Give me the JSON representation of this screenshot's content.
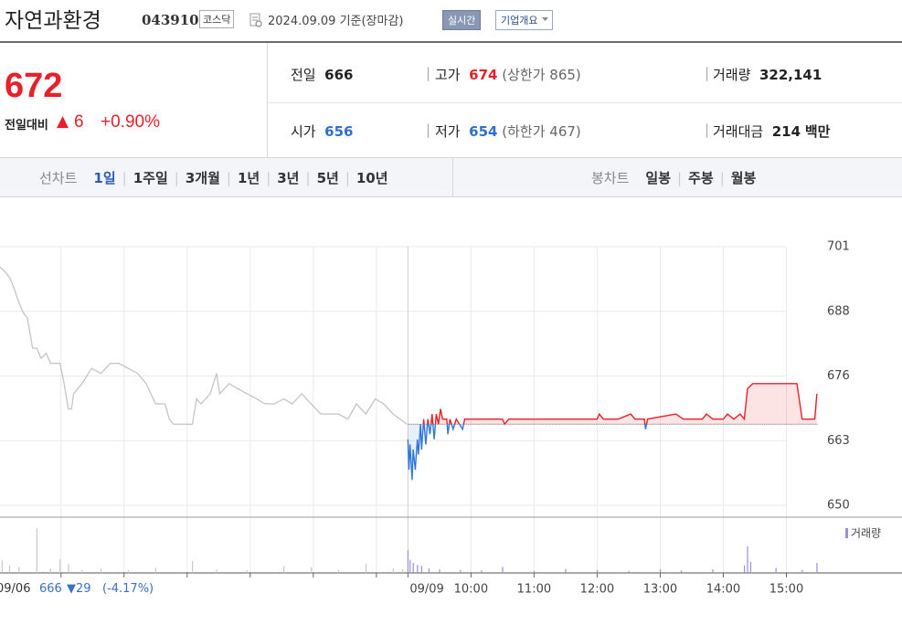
{
  "header": {
    "title": "자연과환경",
    "code": "043910",
    "market": "코스닥",
    "date": "2024.09.09 기준(장마감)",
    "realtime": "실시간",
    "company": "기업개요"
  },
  "quote": {
    "price": 672,
    "change_label": "전일대비",
    "arrow": "▲",
    "change": 6,
    "change_pct": "+0.90%"
  },
  "stats": {
    "prev_close": {
      "label": "전일",
      "value": 666
    },
    "high": {
      "label": "고가",
      "value": 674,
      "extra": "(상한가 865)"
    },
    "volume": {
      "label": "거래량",
      "value": "322,141"
    },
    "open": {
      "label": "시가",
      "value": 656
    },
    "low": {
      "label": "저가",
      "value": 654,
      "extra": "(하한가 467)"
    },
    "amount": {
      "label": "거래대금",
      "value": 214,
      "unit": "백만"
    }
  },
  "tabs": {
    "line": {
      "label": "선차트",
      "items": [
        "1일",
        "1주일",
        "3개월",
        "1년",
        "3년",
        "5년",
        "10년"
      ],
      "active": 0
    },
    "candle": {
      "label": "봉차트",
      "items": [
        "일봉",
        "주봉",
        "월봉"
      ]
    }
  },
  "prev_day": {
    "date": "09/06",
    "close": 666,
    "change": "▼29",
    "pct": "(-4.17%)"
  },
  "chart_data": {
    "type": "line",
    "xlim": [
      -388,
      390
    ],
    "ylim": [
      650,
      701
    ],
    "yticks": [
      650,
      {
        "value": 662.75,
        "label": "663"
      },
      {
        "value": 675.5,
        "label": "676"
      },
      {
        "value": 688.25,
        "label": "688"
      },
      701
    ],
    "xticks": [
      {
        "value": -330,
        "label": null
      },
      {
        "value": -270,
        "label": null
      },
      {
        "value": -210,
        "label": null
      },
      {
        "value": -150,
        "label": null
      },
      {
        "value": -90,
        "label": null
      },
      {
        "value": -30,
        "label": null
      },
      {
        "value": 0,
        "label": "09/09"
      },
      {
        "value": 60,
        "label": "10:00"
      },
      {
        "value": 120,
        "label": "11:00"
      },
      {
        "value": 180,
        "label": "12:00"
      },
      {
        "value": 240,
        "label": "13:00"
      },
      {
        "value": 300,
        "label": "14:00"
      },
      {
        "value": 360,
        "label": "15:00"
      }
    ],
    "grid": true,
    "baseline": 666,
    "series": [
      {
        "color": "#c4c4c4",
        "x": [
          -388,
          -383,
          -379,
          -375,
          -370,
          -366,
          -362,
          -357,
          -353,
          -349,
          -344,
          -340,
          -336,
          -331,
          -327,
          -323,
          -320,
          -318,
          -310,
          -301,
          -292,
          -283,
          -275,
          -266,
          -257,
          -249,
          -240,
          -231,
          -227,
          -223,
          -214,
          -205,
          -201,
          -197,
          -188,
          -182,
          -179,
          -170,
          -162,
          -153,
          -144,
          -136,
          -127,
          -118,
          -110,
          -101,
          -92,
          -83,
          -75,
          -66,
          -57,
          -49,
          -40,
          -31,
          -23,
          -14,
          -1
        ],
        "values": [
          697,
          696,
          695,
          693,
          690,
          688,
          687,
          681,
          681,
          679,
          680,
          678,
          678,
          678,
          674,
          669,
          669,
          672,
          674,
          677,
          676,
          678,
          678,
          677,
          676,
          674,
          670,
          670,
          667,
          666,
          666,
          666,
          671,
          670,
          672,
          676,
          672,
          674,
          673,
          672,
          671,
          670,
          670,
          671,
          670,
          672,
          670,
          668,
          668,
          668,
          667,
          670,
          668,
          671,
          670,
          668,
          666
        ]
      },
      {
        "color": "#e8202a",
        "down_color": "#2f78d9",
        "x": [
          0,
          1,
          2,
          4,
          5,
          7,
          9,
          10,
          12,
          13,
          15,
          17,
          19,
          21,
          23,
          25,
          27,
          29,
          31,
          33,
          37,
          38,
          40,
          43,
          46,
          52,
          54,
          60,
          70,
          80,
          90,
          92,
          96,
          130,
          140,
          180,
          182,
          186,
          200,
          212,
          216,
          225,
          226,
          228,
          255,
          262,
          280,
          284,
          290,
          300,
          304,
          310,
          316,
          320,
          323,
          328,
          370,
          375,
          387,
          389
        ],
        "values": [
          663,
          657,
          662,
          655,
          661,
          657,
          663,
          660,
          666,
          661,
          667,
          662,
          667,
          664,
          668,
          663,
          668,
          666,
          669,
          667,
          667,
          664,
          667,
          665,
          667,
          665,
          667,
          667,
          667,
          667,
          667,
          666,
          667,
          667,
          667,
          667,
          668,
          667,
          667,
          668,
          667,
          667,
          665,
          667,
          668,
          667,
          667,
          668,
          667,
          667,
          668,
          667,
          668,
          667,
          673,
          674,
          674,
          667,
          667,
          672
        ]
      }
    ],
    "volume": {
      "name": "거래량",
      "color": "#9b8fd6",
      "prev_color": "#c8c8c8",
      "ylim": [
        0,
        10000
      ],
      "x": [
        -386,
        -379,
        -370,
        -353,
        -340,
        -331,
        -323,
        -310,
        -292,
        -266,
        -240,
        -205,
        -182,
        -153,
        -118,
        -92,
        -66,
        -40,
        -14,
        -5,
        0,
        2,
        5,
        9,
        13,
        20,
        30,
        50,
        70,
        90,
        120,
        150,
        180,
        210,
        240,
        260,
        290,
        320,
        323,
        326,
        350,
        375,
        389
      ],
      "values": [
        2500,
        1500,
        1200,
        8900,
        900,
        2700,
        1800,
        600,
        800,
        500,
        1000,
        2400,
        700,
        500,
        1400,
        1100,
        600,
        1800,
        900,
        700,
        4500,
        2600,
        2000,
        1600,
        1400,
        900,
        700,
        600,
        500,
        1200,
        400,
        800,
        600,
        400,
        700,
        500,
        700,
        1500,
        5300,
        2200,
        1000,
        600,
        2000
      ]
    }
  }
}
